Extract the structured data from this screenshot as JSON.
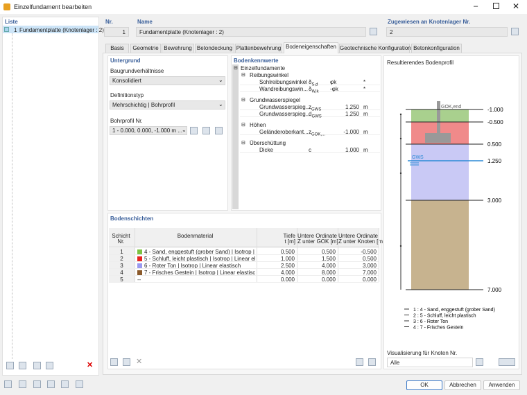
{
  "window": {
    "title": "Einzelfundament bearbeiten"
  },
  "list": {
    "header": "Liste",
    "items": [
      {
        "nr": "1",
        "label": "Fundamentplatte (Knotenlager : 2)"
      }
    ]
  },
  "nr": {
    "label": "Nr.",
    "value": "1"
  },
  "name": {
    "label": "Name",
    "value": "Fundamentplatte (Knotenlager : 2)"
  },
  "assigned": {
    "label": "Zugewiesen an Knotenlager Nr.",
    "value": "2"
  },
  "tabs": [
    "Basis",
    "Geometrie",
    "Bewehrung",
    "Betondeckung",
    "Plattenbewehrung",
    "Bodeneigenschaften",
    "Geotechnische Konfiguration",
    "Betonkonfiguration"
  ],
  "active_tab": 5,
  "untergrund": {
    "title": "Untergrund",
    "fields": [
      {
        "label": "Baugrundverhältnisse",
        "value": "Konsolidiert"
      },
      {
        "label": "Definitionstyp",
        "value": "Mehrschichtig | Bohrprofil"
      },
      {
        "label": "Bohrprofil Nr.",
        "value": "1 - 0.000, 0.000, -1.000 m ..."
      }
    ]
  },
  "bodenkennwerte": {
    "title": "Bodenkennwerte",
    "root": "Einzelfundamente",
    "groups": [
      {
        "name": "Reibungswinkel",
        "rows": [
          {
            "label": "Sohlreibungswinkel",
            "sym": "δ",
            "sub": "S,d",
            "value": "φk",
            "unit": "*"
          },
          {
            "label": "Wandreibungswin...",
            "sym": "δ",
            "sub": "W,k",
            "value": "-φk",
            "unit": "*"
          }
        ]
      },
      {
        "name": "Grundwasserspiegel",
        "rows": [
          {
            "label": "Grundwasserspieg...",
            "sym": "z",
            "sub": "GWS",
            "value": "1.250",
            "unit": "m"
          },
          {
            "label": "Grundwasserspieg...",
            "sym": "d",
            "sub": "GWS",
            "value": "1.250",
            "unit": "m"
          }
        ]
      },
      {
        "name": "Höhen",
        "rows": [
          {
            "label": "Geländeroberkant...",
            "sym": "z",
            "sub": "GOK,...",
            "value": "-1.000",
            "unit": "m"
          }
        ]
      },
      {
        "name": "Überschüttung",
        "rows": [
          {
            "label": "Dicke",
            "sym": "c",
            "sub": "",
            "value": "1.000",
            "unit": "m"
          }
        ]
      }
    ]
  },
  "bodenschichten": {
    "title": "Bodenschichten",
    "columns": [
      [
        "Schicht",
        "Nr."
      ],
      [
        "Bodenmaterial"
      ],
      [
        "Tiefe",
        "t [m]"
      ],
      [
        "Untere Ordinate",
        "Z unter GOK [m]"
      ],
      [
        "Untere Ordinate",
        "Z unter Knoten [m"
      ]
    ],
    "rows": [
      {
        "nr": "1",
        "color": "#7cc242",
        "material": "4 - Sand, enggestuft (grober Sand) | Isotrop | Li...",
        "values": [
          "0.500",
          "0.500",
          "-0.500"
        ]
      },
      {
        "nr": "2",
        "color": "#e8231f",
        "material": "5 - Schluff, leicht plastisch | Isotrop | Linear ela...",
        "values": [
          "1.000",
          "1.500",
          "0.500"
        ]
      },
      {
        "nr": "3",
        "color": "#9a9af0",
        "material": "6 - Roter Ton | Isotrop | Linear elastisch",
        "values": [
          "2.500",
          "4.000",
          "3.000"
        ]
      },
      {
        "nr": "4",
        "color": "#8b5a2b",
        "material": "7 - Frisches Gestein | Isotrop | Linear elastisch",
        "values": [
          "4.000",
          "8.000",
          "7.000"
        ]
      },
      {
        "nr": "5",
        "color": null,
        "material": "--",
        "values": [
          "0.000",
          "0.000",
          "0.000"
        ]
      }
    ]
  },
  "profile": {
    "title": "Resultierendes Bodenprofil",
    "gok": "GOK,end",
    "gws": "GWS",
    "levels": [
      "-1.000",
      "-0.500",
      "0.500",
      "1.250",
      "3.000",
      "7.000"
    ],
    "legend": [
      "1 : 4 - Sand, enggestuft (grober Sand)",
      "2 : 5 - Schluff, leicht plastisch",
      "3 : 6 - Roter Ton",
      "4 : 7 - Frisches Gestein"
    ],
    "visual_label": "Visualisierung für Knoten Nr.",
    "visual_value": "Alle"
  },
  "buttons": [
    "OK",
    "Abbrechen",
    "Anwenden"
  ]
}
